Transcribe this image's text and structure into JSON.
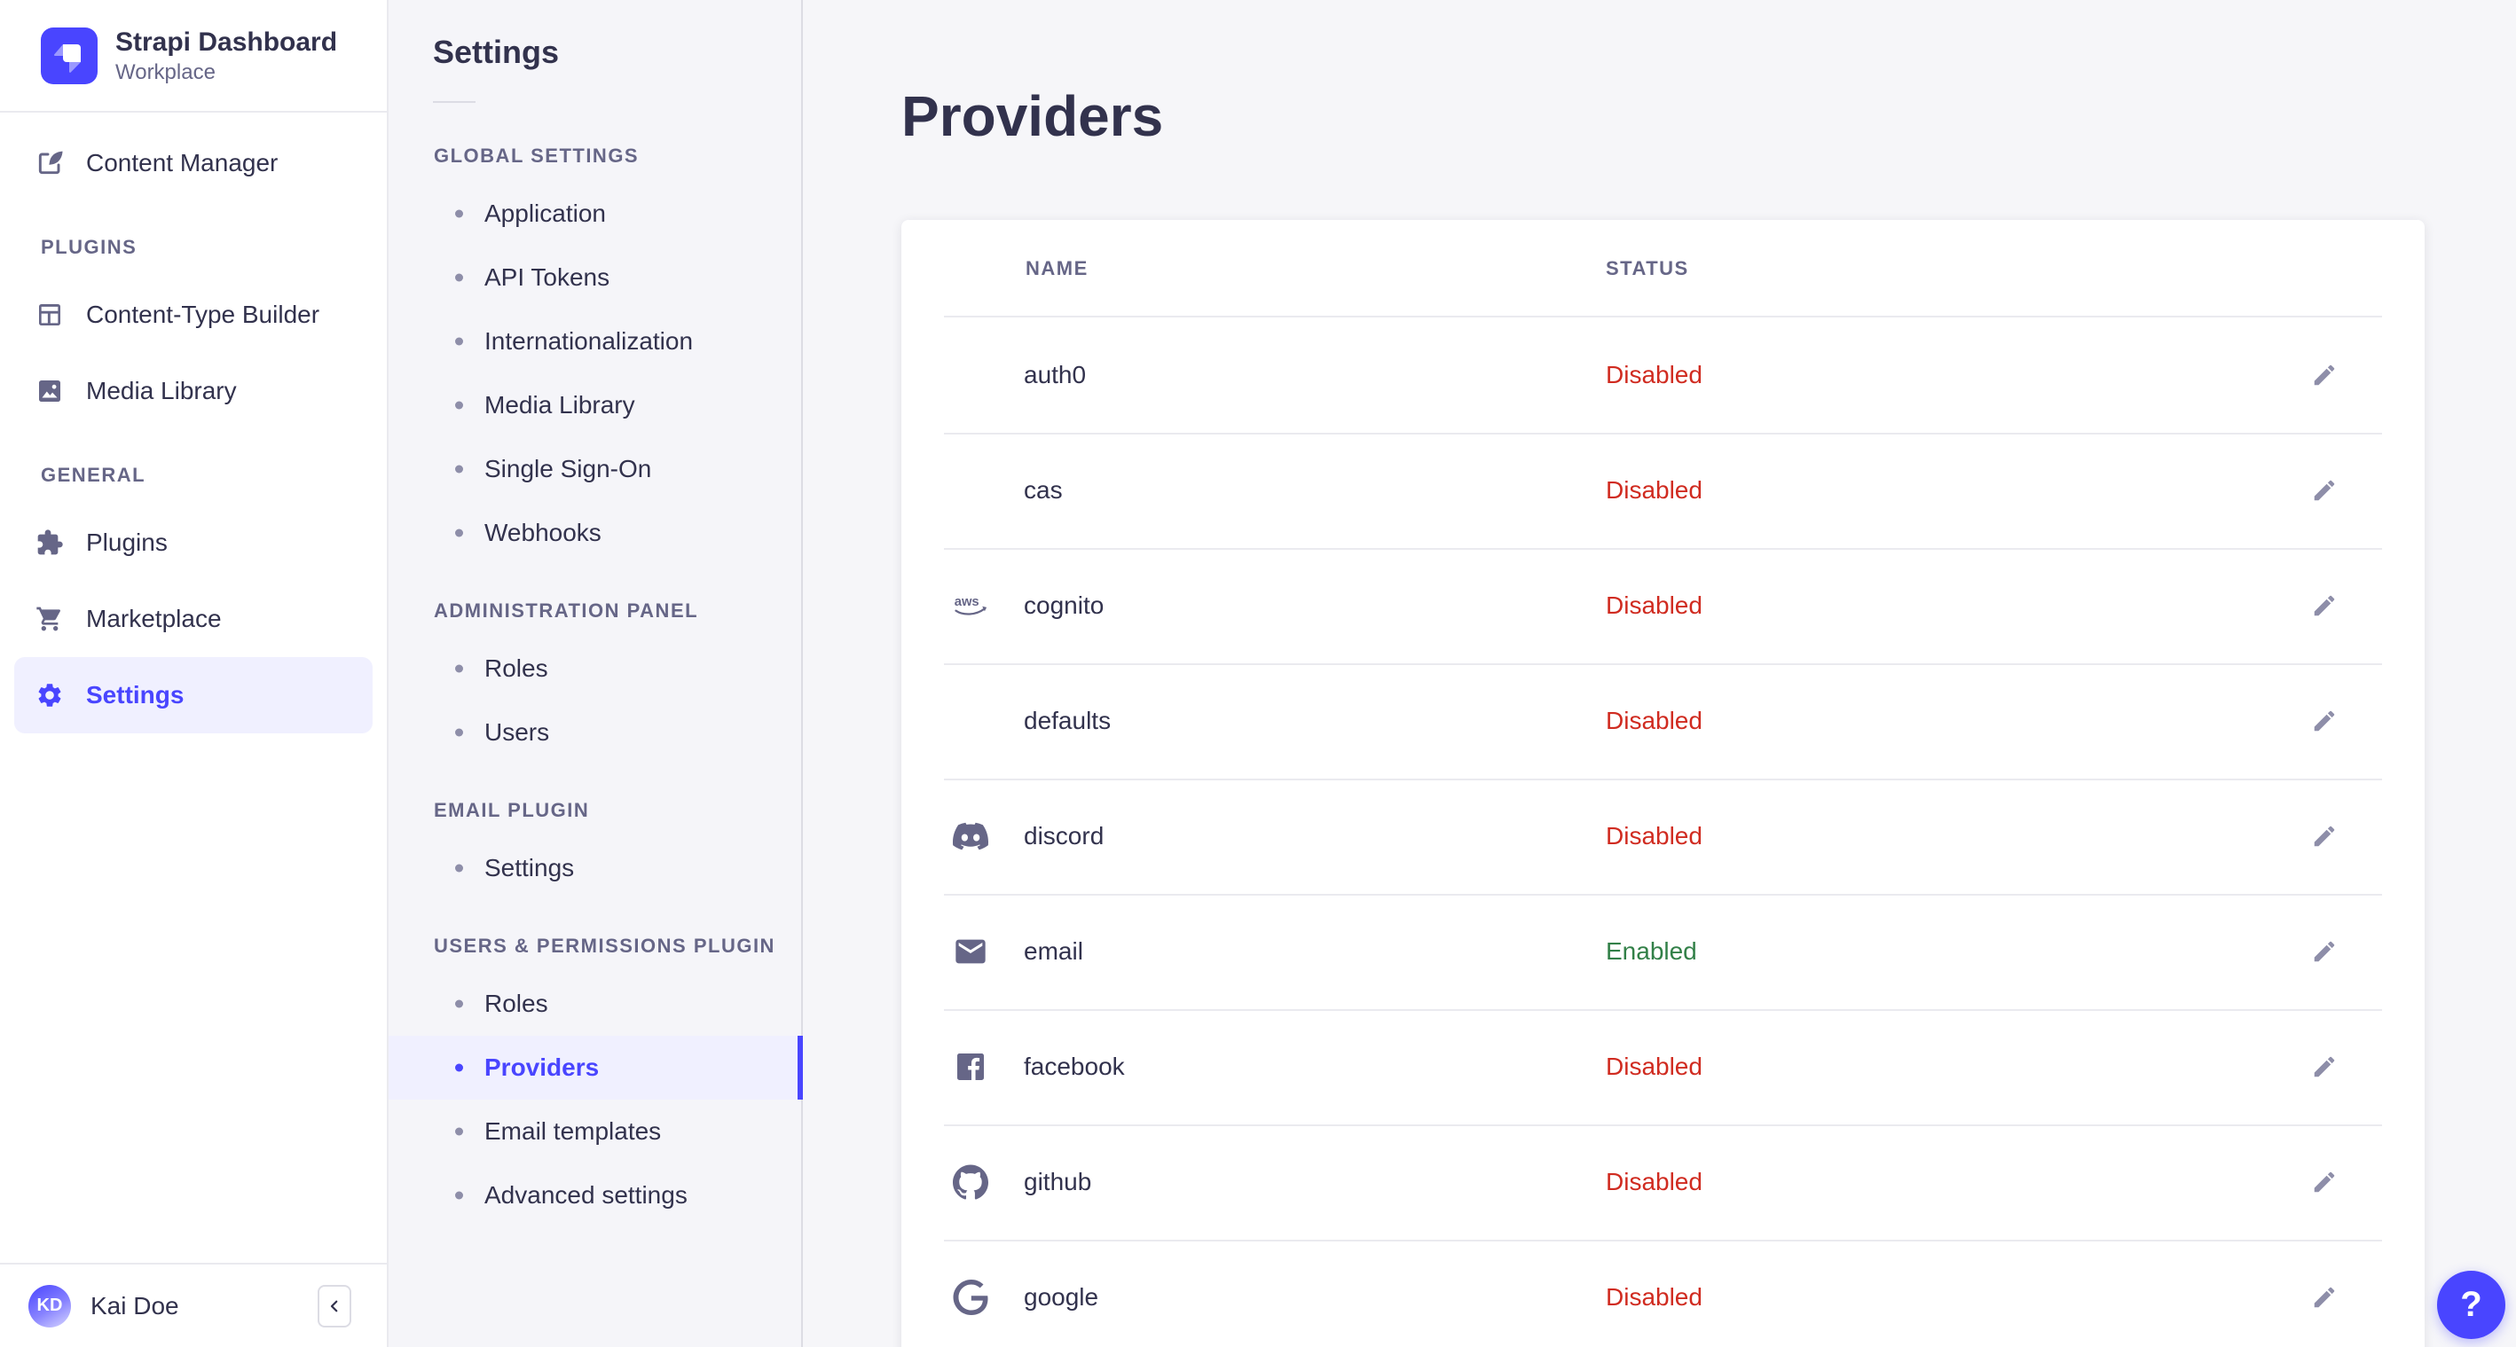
{
  "brand": {
    "title": "Strapi Dashboard",
    "workplace": "Workplace",
    "logo_icon": "strapi-logo"
  },
  "colors": {
    "primary": "#4945ff",
    "primary_light_bg": "#f0f0ff",
    "danger": "#d02b20",
    "success": "#328048",
    "text_dark": "#32324d",
    "text_muted": "#666687",
    "icon_muted": "#8e8ea9",
    "divider": "#eaeaef",
    "page_bg": "#f6f6f9"
  },
  "main_nav": {
    "sections": [
      {
        "label": "",
        "items": [
          {
            "label": "Content Manager",
            "icon": "content-manager",
            "active": false
          }
        ]
      },
      {
        "label": "PLUGINS",
        "items": [
          {
            "label": "Content-Type Builder",
            "icon": "content-type-builder",
            "active": false
          },
          {
            "label": "Media Library",
            "icon": "media-library",
            "active": false
          }
        ]
      },
      {
        "label": "GENERAL",
        "items": [
          {
            "label": "Plugins",
            "icon": "puzzle",
            "active": false
          },
          {
            "label": "Marketplace",
            "icon": "cart",
            "active": false
          },
          {
            "label": "Settings",
            "icon": "gear",
            "active": true
          }
        ]
      }
    ],
    "user": {
      "initials": "KD",
      "name": "Kai Doe",
      "collapse_icon": "chevron-left-icon"
    }
  },
  "sub_nav": {
    "title": "Settings",
    "sections": [
      {
        "label": "GLOBAL SETTINGS",
        "active_item": "",
        "items": [
          "Application",
          "API Tokens",
          "Internationalization",
          "Media Library",
          "Single Sign-On",
          "Webhooks"
        ]
      },
      {
        "label": "ADMINISTRATION PANEL",
        "active_item": "",
        "items": [
          "Roles",
          "Users"
        ]
      },
      {
        "label": "EMAIL PLUGIN",
        "active_item": "",
        "items": [
          "Settings"
        ]
      },
      {
        "label": "USERS & PERMISSIONS PLUGIN",
        "active_item": "Providers",
        "items": [
          "Roles",
          "Providers",
          "Email templates",
          "Advanced settings"
        ]
      }
    ]
  },
  "main": {
    "page_title": "Providers",
    "table": {
      "columns": [
        "NAME",
        "STATUS"
      ],
      "rows": [
        {
          "name": "auth0",
          "icon": "",
          "status": "Disabled"
        },
        {
          "name": "cas",
          "icon": "",
          "status": "Disabled"
        },
        {
          "name": "cognito",
          "icon": "aws",
          "status": "Disabled"
        },
        {
          "name": "defaults",
          "icon": "",
          "status": "Disabled"
        },
        {
          "name": "discord",
          "icon": "discord",
          "status": "Disabled"
        },
        {
          "name": "email",
          "icon": "envelope",
          "status": "Enabled"
        },
        {
          "name": "facebook",
          "icon": "facebook",
          "status": "Disabled"
        },
        {
          "name": "github",
          "icon": "github",
          "status": "Disabled"
        },
        {
          "name": "google",
          "icon": "google",
          "status": "Disabled"
        }
      ],
      "edit_icon": "pencil-icon"
    }
  },
  "help": {
    "label": "?"
  }
}
